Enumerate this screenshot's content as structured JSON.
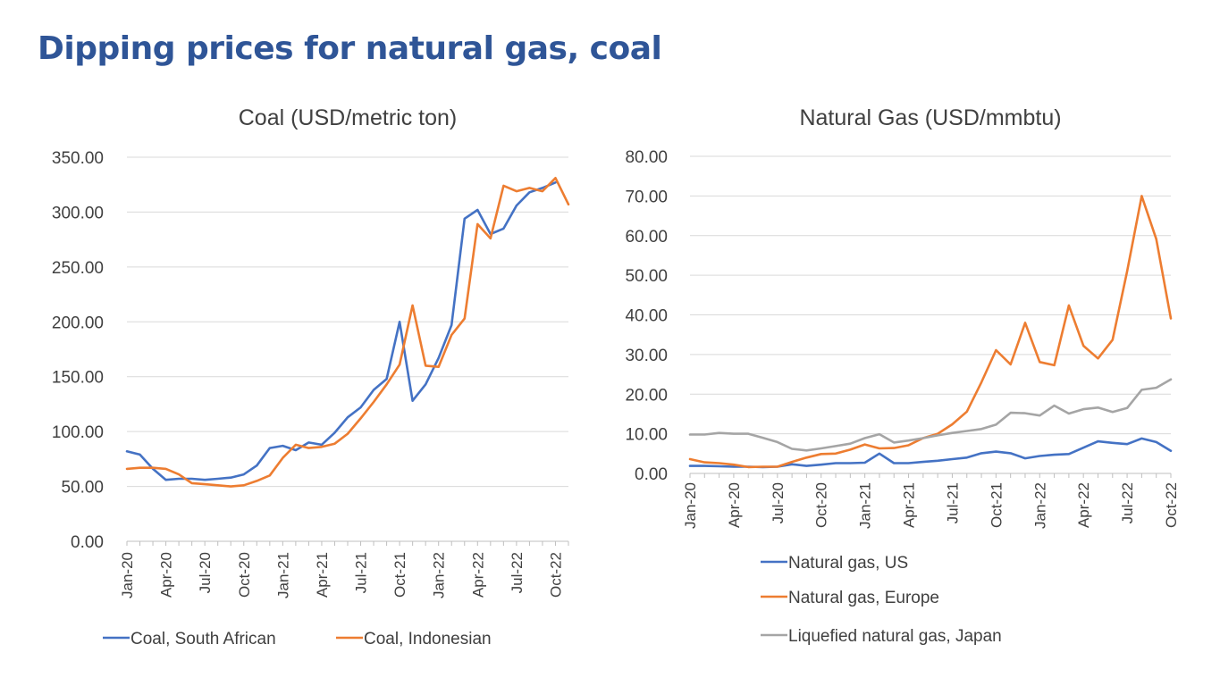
{
  "page": {
    "title": "Dipping prices for natural gas, coal"
  },
  "colors": {
    "title": "#2F5597",
    "blue": "#4472C4",
    "orange": "#ED7D31",
    "gray": "#A5A5A5"
  },
  "chart_data": [
    {
      "type": "line",
      "title": "Coal (USD/metric ton)",
      "xlabel": "",
      "ylabel": "",
      "ylim": [
        0,
        350
      ],
      "y_ticks": [
        "0.00",
        "50.00",
        "100.00",
        "150.00",
        "200.00",
        "250.00",
        "300.00",
        "350.00"
      ],
      "x_tick_labels": [
        "Jan-20",
        "Apr-20",
        "Jul-20",
        "Oct-20",
        "Jan-21",
        "Apr-21",
        "Jul-21",
        "Oct-21",
        "Jan-22",
        "Apr-22",
        "Jul-22",
        "Oct-22"
      ],
      "grid": true,
      "legend_position": "bottom",
      "x": [
        "Jan-20",
        "Feb-20",
        "Mar-20",
        "Apr-20",
        "May-20",
        "Jun-20",
        "Jul-20",
        "Aug-20",
        "Sep-20",
        "Oct-20",
        "Nov-20",
        "Dec-20",
        "Jan-21",
        "Feb-21",
        "Mar-21",
        "Apr-21",
        "May-21",
        "Jun-21",
        "Jul-21",
        "Aug-21",
        "Sep-21",
        "Oct-21",
        "Nov-21",
        "Dec-21",
        "Jan-22",
        "Feb-22",
        "Mar-22",
        "Apr-22",
        "May-22",
        "Jun-22",
        "Jul-22",
        "Aug-22",
        "Sep-22",
        "Oct-22",
        "Nov-22"
      ],
      "series": [
        {
          "name": "Coal, South African",
          "color": "#4472C4",
          "values": [
            82,
            79,
            66,
            56,
            57,
            57,
            56,
            57,
            58,
            61,
            69,
            85,
            87,
            83,
            90,
            88,
            99,
            113,
            122,
            138,
            148,
            200,
            128,
            143,
            167,
            197,
            294,
            302,
            280,
            285,
            306,
            318,
            322,
            327,
            null
          ]
        },
        {
          "name": "Coal, Indonesian",
          "color": "#ED7D31",
          "values": [
            66,
            67,
            67,
            66,
            61,
            53,
            52,
            51,
            50,
            51,
            55,
            60,
            76,
            88,
            85,
            86,
            89,
            98,
            112,
            127,
            143,
            161,
            215,
            160,
            159,
            188,
            203,
            289,
            276,
            324,
            319,
            322,
            319,
            331,
            307
          ]
        }
      ]
    },
    {
      "type": "line",
      "title": "Natural Gas (USD/mmbtu)",
      "xlabel": "",
      "ylabel": "",
      "ylim": [
        0,
        80
      ],
      "y_ticks": [
        "0.00",
        "10.00",
        "20.00",
        "30.00",
        "40.00",
        "50.00",
        "60.00",
        "70.00",
        "80.00"
      ],
      "x_tick_labels": [
        "Jan-20",
        "Apr-20",
        "Jul-20",
        "Oct-20",
        "Jan-21",
        "Apr-21",
        "Jul-21",
        "Oct-21",
        "Jan-22",
        "Apr-22",
        "Jul-22",
        "Oct-22"
      ],
      "grid": true,
      "legend_position": "bottom",
      "x": [
        "Jan-20",
        "Feb-20",
        "Mar-20",
        "Apr-20",
        "May-20",
        "Jun-20",
        "Jul-20",
        "Aug-20",
        "Sep-20",
        "Oct-20",
        "Nov-20",
        "Dec-20",
        "Jan-21",
        "Feb-21",
        "Mar-21",
        "Apr-21",
        "May-21",
        "Jun-21",
        "Jul-21",
        "Aug-21",
        "Sep-21",
        "Oct-21",
        "Nov-21",
        "Dec-21",
        "Jan-22",
        "Feb-22",
        "Mar-22",
        "Apr-22",
        "May-22",
        "Jun-22",
        "Jul-22",
        "Aug-22",
        "Sep-22",
        "Oct-22"
      ],
      "series": [
        {
          "name": "Natural gas, US",
          "color": "#4472C4",
          "values": [
            1.9,
            1.9,
            1.8,
            1.7,
            1.7,
            1.6,
            1.7,
            2.3,
            1.9,
            2.2,
            2.6,
            2.6,
            2.7,
            5.0,
            2.6,
            2.6,
            2.9,
            3.2,
            3.6,
            4.0,
            5.1,
            5.5,
            5.1,
            3.8,
            4.4,
            4.7,
            4.9,
            6.5,
            8.1,
            7.7,
            7.4,
            8.8,
            7.9,
            5.7
          ]
        },
        {
          "name": "Natural gas, Europe",
          "color": "#ED7D31",
          "values": [
            3.6,
            2.8,
            2.6,
            2.2,
            1.6,
            1.7,
            1.7,
            2.9,
            4.0,
            4.9,
            5.0,
            6.0,
            7.3,
            6.3,
            6.4,
            7.1,
            8.9,
            10.0,
            12.4,
            15.6,
            23.0,
            31.1,
            27.5,
            38.0,
            28.1,
            27.3,
            42.4,
            32.2,
            29.0,
            33.7,
            51.0,
            70.0,
            59.1,
            39.1
          ]
        },
        {
          "name": "Liquefied natural gas, Japan",
          "color": "#A5A5A5",
          "values": [
            9.8,
            9.8,
            10.2,
            10.0,
            10.0,
            9.0,
            7.9,
            6.2,
            5.8,
            6.3,
            6.9,
            7.5,
            8.9,
            9.9,
            7.8,
            8.3,
            8.9,
            9.6,
            10.2,
            10.7,
            11.2,
            12.3,
            15.3,
            15.2,
            14.6,
            17.1,
            15.1,
            16.2,
            16.6,
            15.5,
            16.5,
            21.1,
            21.6,
            23.7
          ]
        }
      ]
    }
  ]
}
